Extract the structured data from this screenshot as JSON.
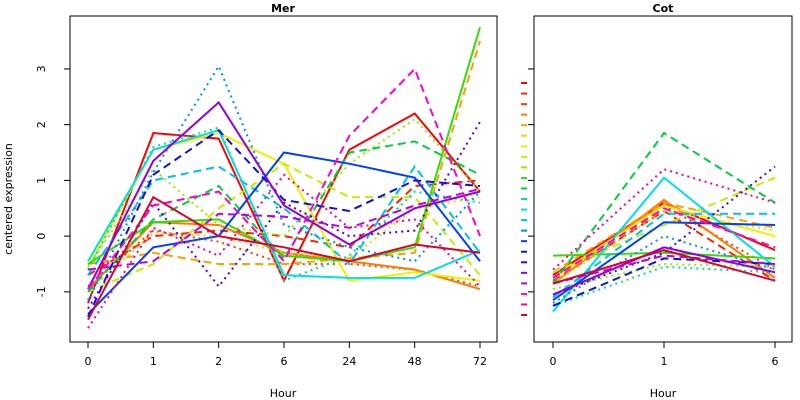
{
  "chart_data": {
    "type": "line",
    "ylabel": "centered expression",
    "xlabel": "Hour",
    "ylim": [
      -1.9,
      3.95
    ],
    "yticks": [
      -1,
      0,
      1,
      2,
      3
    ],
    "panels": [
      {
        "title": "Mer",
        "categories": [
          "0",
          "1",
          "2",
          "6",
          "24",
          "48",
          "72"
        ],
        "series": [
          {
            "color": "#ff0000",
            "dash": "solid",
            "values": [
              -1.2,
              1.85,
              1.75,
              -0.8,
              1.55,
              2.2,
              0.8
            ]
          },
          {
            "color": "#ff2000",
            "dash": "dashed",
            "values": [
              -0.7,
              0.0,
              0.1,
              0.0,
              -0.2,
              0.9,
              1.0
            ]
          },
          {
            "color": "#ff4000",
            "dash": "dotted",
            "values": [
              -0.9,
              0.1,
              -0.1,
              -0.5,
              -0.5,
              -0.6,
              -0.9
            ]
          },
          {
            "color": "#ff7a00",
            "dash": "solid",
            "values": [
              -0.95,
              0.25,
              0.2,
              -0.3,
              -0.45,
              -0.6,
              -0.95
            ]
          },
          {
            "color": "#ffa000",
            "dash": "dashed",
            "values": [
              -0.5,
              -0.3,
              -0.5,
              -0.5,
              -0.4,
              -0.3,
              3.5
            ]
          },
          {
            "color": "#ffd000",
            "dash": "dotted",
            "values": [
              -1.0,
              0.05,
              0.0,
              -0.3,
              -0.4,
              0.5,
              0.7
            ]
          },
          {
            "color": "#f0f000",
            "dash": "solid",
            "values": [
              -0.55,
              1.55,
              1.85,
              1.3,
              -0.8,
              -0.65,
              -0.8
            ]
          },
          {
            "color": "#c0f000",
            "dash": "dashed",
            "values": [
              -1.0,
              -0.5,
              0.5,
              1.3,
              0.7,
              0.7,
              -0.7
            ]
          },
          {
            "color": "#90f000",
            "dash": "dotted",
            "values": [
              -0.55,
              1.2,
              0.2,
              0.0,
              1.3,
              2.1,
              0.8
            ]
          },
          {
            "color": "#30e000",
            "dash": "solid",
            "values": [
              -0.5,
              0.25,
              0.3,
              -0.35,
              -0.45,
              -0.2,
              3.75
            ]
          },
          {
            "color": "#00d040",
            "dash": "dashed",
            "values": [
              -1.0,
              0.3,
              0.9,
              -0.4,
              1.5,
              1.7,
              1.1
            ]
          },
          {
            "color": "#00e090",
            "dash": "dotted",
            "values": [
              -0.6,
              1.6,
              1.95,
              -0.8,
              -0.35,
              0.8,
              0.6
            ]
          },
          {
            "color": "#00e0e0",
            "dash": "solid",
            "values": [
              -0.45,
              1.55,
              1.9,
              -0.7,
              -0.75,
              -0.75,
              -0.25
            ]
          },
          {
            "color": "#00c0f0",
            "dash": "dashed",
            "values": [
              -0.7,
              1.0,
              1.25,
              0.5,
              -0.5,
              1.25,
              -0.3
            ]
          },
          {
            "color": "#0090f0",
            "dash": "dotted",
            "values": [
              -1.15,
              1.15,
              3.05,
              0.2,
              -0.2,
              -0.45,
              0.8
            ]
          },
          {
            "color": "#0040ff",
            "dash": "solid",
            "values": [
              -1.4,
              -0.2,
              0.0,
              1.5,
              1.3,
              1.05,
              -0.45
            ]
          },
          {
            "color": "#1010e0",
            "dash": "dashed",
            "values": [
              -1.45,
              1.1,
              1.9,
              0.65,
              0.45,
              1.0,
              0.9
            ]
          },
          {
            "color": "#5000e0",
            "dash": "dotted",
            "values": [
              -1.3,
              0.6,
              -0.9,
              0.6,
              0.0,
              0.1,
              2.05
            ]
          },
          {
            "color": "#9000e0",
            "dash": "solid",
            "values": [
              -0.95,
              1.35,
              2.4,
              0.55,
              -0.15,
              0.5,
              0.8
            ]
          },
          {
            "color": "#c000e0",
            "dash": "dashed",
            "values": [
              -0.6,
              -0.45,
              0.4,
              0.35,
              0.15,
              0.55,
              0.85
            ]
          },
          {
            "color": "#ff00d0",
            "dash": "dashed",
            "values": [
              -0.95,
              0.55,
              0.8,
              -0.45,
              1.8,
              3.0,
              0.0
            ]
          },
          {
            "color": "#ff0090",
            "dash": "dotted",
            "values": [
              -1.65,
              0.15,
              -0.35,
              1.1,
              0.15,
              0.3,
              -0.9
            ]
          },
          {
            "color": "#e00030",
            "dash": "solid",
            "values": [
              -1.5,
              0.7,
              0.0,
              -0.2,
              -0.45,
              -0.15,
              -0.3
            ]
          }
        ]
      },
      {
        "title": "Cot",
        "categories": [
          "0",
          "1",
          "6"
        ],
        "series": [
          {
            "color": "#ff0000",
            "dash": "solid",
            "values": [
              -0.7,
              0.6,
              -0.25
            ]
          },
          {
            "color": "#ff2000",
            "dash": "dashed",
            "values": [
              -0.8,
              0.45,
              -0.8
            ]
          },
          {
            "color": "#ff4000",
            "dash": "dotted",
            "values": [
              -0.75,
              0.55,
              -0.6
            ]
          },
          {
            "color": "#ff7a00",
            "dash": "solid",
            "values": [
              -0.85,
              0.65,
              -0.75
            ]
          },
          {
            "color": "#ffa000",
            "dash": "dashed",
            "values": [
              -0.65,
              0.6,
              0.15
            ]
          },
          {
            "color": "#ffd000",
            "dash": "dotted",
            "values": [
              -0.85,
              0.45,
              0.1
            ]
          },
          {
            "color": "#f0f000",
            "dash": "solid",
            "values": [
              -0.75,
              0.55,
              0.0
            ]
          },
          {
            "color": "#c0f000",
            "dash": "dashed",
            "values": [
              -0.65,
              0.2,
              1.05
            ]
          },
          {
            "color": "#90f000",
            "dash": "dotted",
            "values": [
              -0.95,
              -0.5,
              -0.55
            ]
          },
          {
            "color": "#30e000",
            "dash": "solid",
            "values": [
              -0.35,
              -0.3,
              -0.4
            ]
          },
          {
            "color": "#00d040",
            "dash": "dashed",
            "values": [
              -0.85,
              1.85,
              0.6
            ]
          },
          {
            "color": "#00e090",
            "dash": "dotted",
            "values": [
              -1.25,
              -0.55,
              -0.65
            ]
          },
          {
            "color": "#00e0e0",
            "dash": "solid",
            "values": [
              -1.35,
              1.05,
              -0.55
            ]
          },
          {
            "color": "#00c0f0",
            "dash": "dashed",
            "values": [
              -1.1,
              0.4,
              0.4
            ]
          },
          {
            "color": "#0090f0",
            "dash": "dotted",
            "values": [
              -1.2,
              0.0,
              -0.6
            ]
          },
          {
            "color": "#0040ff",
            "dash": "solid",
            "values": [
              -1.15,
              0.25,
              0.2
            ]
          },
          {
            "color": "#1010e0",
            "dash": "dashed",
            "values": [
              -1.25,
              -0.4,
              -0.5
            ]
          },
          {
            "color": "#5000e0",
            "dash": "dotted",
            "values": [
              -1.05,
              -0.3,
              1.25
            ]
          },
          {
            "color": "#9000e0",
            "dash": "solid",
            "values": [
              -1.05,
              -0.2,
              -0.65
            ]
          },
          {
            "color": "#c000e0",
            "dash": "dashed",
            "values": [
              -0.85,
              -0.35,
              -0.5
            ]
          },
          {
            "color": "#ff00d0",
            "dash": "dashed",
            "values": [
              -0.75,
              0.5,
              -0.2
            ]
          },
          {
            "color": "#ff0090",
            "dash": "dotted",
            "values": [
              -0.6,
              1.2,
              0.6
            ]
          },
          {
            "color": "#e00030",
            "dash": "solid",
            "values": [
              -0.85,
              -0.25,
              -0.8
            ]
          }
        ]
      }
    ]
  }
}
